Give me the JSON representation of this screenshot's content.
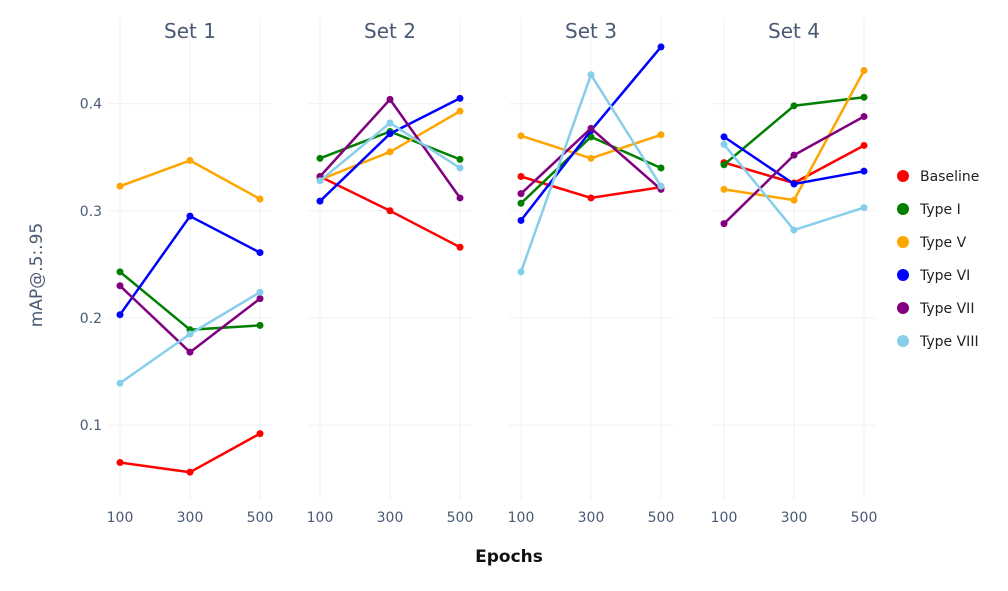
{
  "chart_data": {
    "type": "line",
    "facets": [
      "Set 1",
      "Set 2",
      "Set 3",
      "Set 4"
    ],
    "x": [
      100,
      300,
      500
    ],
    "xlabel": "Epochs",
    "ylabel": "mAP@.5:.95",
    "ylim": [
      0.03,
      0.48
    ],
    "yticks": [
      0.1,
      0.2,
      0.3,
      0.4
    ],
    "ytick_labels": [
      "0.1",
      "0.2",
      "0.3",
      "0.4"
    ],
    "xtick_labels": [
      "100",
      "300",
      "500"
    ],
    "grid": true,
    "legend_position": "right",
    "series": [
      {
        "name": "Baseline",
        "color": "#ff0000",
        "values": [
          [
            0.065,
            0.056,
            0.092
          ],
          [
            0.332,
            0.3,
            0.266
          ],
          [
            0.332,
            0.312,
            0.322
          ],
          [
            0.345,
            0.326,
            0.361
          ]
        ]
      },
      {
        "name": "Type I",
        "color": "#007f00",
        "values": [
          [
            0.243,
            0.189,
            0.193
          ],
          [
            0.349,
            0.374,
            0.348
          ],
          [
            0.307,
            0.369,
            0.34
          ],
          [
            0.343,
            0.398,
            0.406
          ]
        ]
      },
      {
        "name": "Type V",
        "color": "#ffa500",
        "values": [
          [
            0.323,
            0.347,
            0.311
          ],
          [
            0.329,
            0.355,
            0.393
          ],
          [
            0.37,
            0.349,
            0.371
          ],
          [
            0.32,
            0.31,
            0.431
          ]
        ]
      },
      {
        "name": "Type VI",
        "color": "#0000ff",
        "values": [
          [
            0.203,
            0.295,
            0.261
          ],
          [
            0.309,
            0.372,
            0.405
          ],
          [
            0.291,
            0.375,
            0.453
          ],
          [
            0.369,
            0.325,
            0.337
          ]
        ]
      },
      {
        "name": "Type VII",
        "color": "#800080",
        "values": [
          [
            0.23,
            0.168,
            0.218
          ],
          [
            0.332,
            0.404,
            0.312
          ],
          [
            0.316,
            0.377,
            0.32
          ],
          [
            0.288,
            0.352,
            0.388
          ]
        ]
      },
      {
        "name": "Type VIII",
        "color": "#87ceeb",
        "values": [
          [
            0.139,
            0.185,
            0.224
          ],
          [
            0.328,
            0.382,
            0.34
          ],
          [
            0.243,
            0.427,
            0.323
          ],
          [
            0.362,
            0.282,
            0.303
          ]
        ]
      }
    ]
  }
}
